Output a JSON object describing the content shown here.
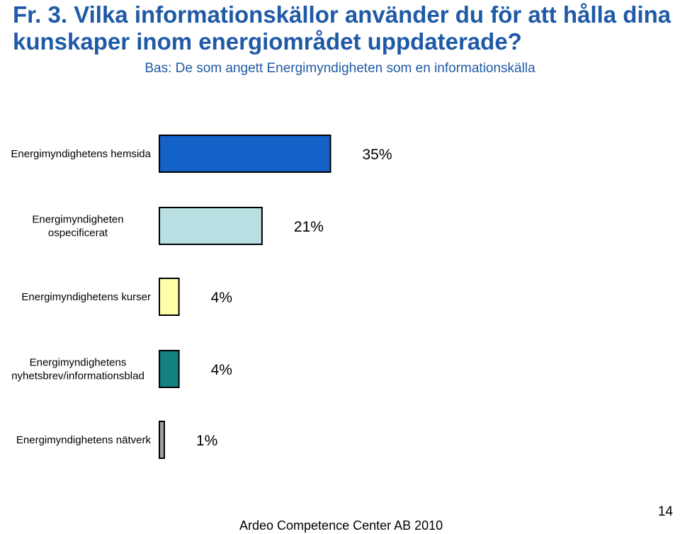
{
  "slide": {
    "title": "Fr. 3. Vilka informationskällor använder du för att hålla dina kunskaper inom energiområdet uppdaterade?",
    "subtitle": "Bas: De som angett Energimyndigheten som en informationskälla",
    "footer": "Ardeo Competence Center AB 2010",
    "page_number": "14"
  },
  "chart_data": {
    "type": "bar",
    "orientation": "horizontal",
    "title": "",
    "xlabel": "",
    "ylabel": "",
    "unit": "%",
    "grid": false,
    "legend": "none",
    "categories": [
      [
        "Energimyndighetens hemsida"
      ],
      [
        "Energimyndigheten",
        "ospecificerat"
      ],
      [
        "Energimyndighetens kurser"
      ],
      [
        "Energimyndighetens",
        "nyhetsbrev/informationsblad"
      ],
      [
        "Energimyndighetens nätverk"
      ]
    ],
    "values": [
      35,
      21,
      4,
      4,
      1
    ],
    "value_labels": [
      "35%",
      "21%",
      "4%",
      "4%",
      "1%"
    ],
    "colors": [
      "#1462c8",
      "#b8dfe2",
      "#ffffa8",
      "#148080",
      "#a0a0a0"
    ]
  }
}
